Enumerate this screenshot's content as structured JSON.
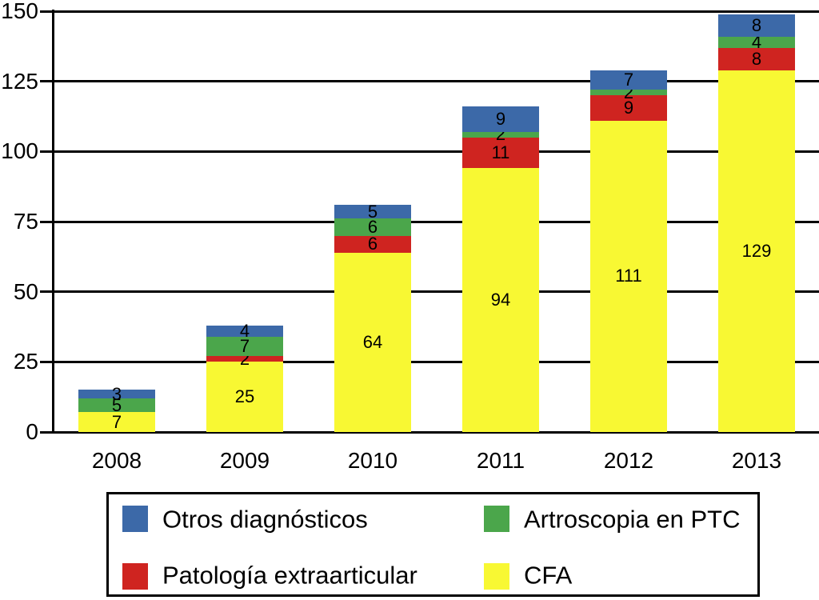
{
  "chart_data": {
    "type": "bar",
    "stacked": true,
    "title": "",
    "xlabel": "",
    "ylabel": "",
    "categories": [
      "2008",
      "2009",
      "2010",
      "2011",
      "2012",
      "2013"
    ],
    "series": [
      {
        "name": "CFA",
        "color": "#F8F833",
        "values": [
          7,
          25,
          64,
          94,
          111,
          129
        ]
      },
      {
        "name": "Patología extraarticular",
        "color": "#CF2420",
        "values": [
          0,
          2,
          6,
          11,
          9,
          8
        ]
      },
      {
        "name": "Artroscopia en PTC",
        "color": "#4BA64B",
        "values": [
          5,
          7,
          6,
          2,
          2,
          4
        ]
      },
      {
        "name": "Otros diagnósticos",
        "color": "#3C69A8",
        "values": [
          3,
          4,
          5,
          9,
          7,
          8
        ]
      }
    ],
    "bar_totals": [
      15,
      38,
      81,
      116,
      129,
      149
    ],
    "y_ticks": [
      "0",
      "25",
      "50",
      "75",
      "100",
      "125",
      "150"
    ],
    "ylim": [
      0,
      150
    ],
    "grid": true,
    "gridline_color": "#000000",
    "value_label_color": "#000000",
    "legend_position": "bottom",
    "legend_items": [
      {
        "label": "Otros diagnósticos",
        "color": "#3C69A8"
      },
      {
        "label": "Artroscopia en PTC",
        "color": "#4BA64B"
      },
      {
        "label": "Patología extraarticular",
        "color": "#CF2420"
      },
      {
        "label": "CFA",
        "color": "#F8F833"
      }
    ]
  }
}
